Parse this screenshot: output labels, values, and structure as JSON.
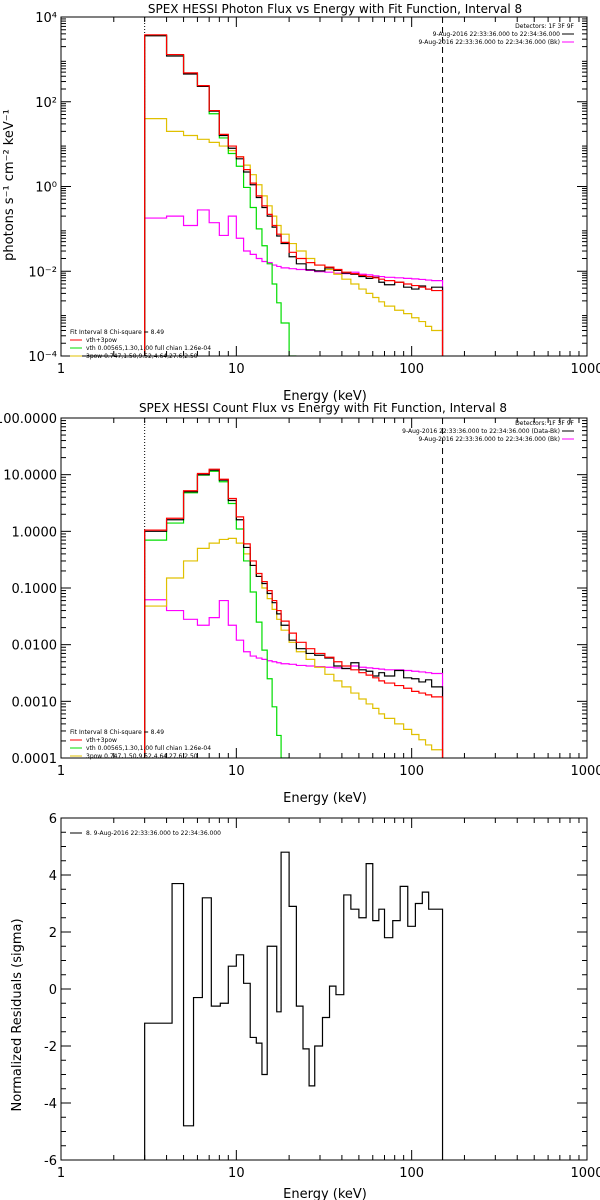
{
  "colors": {
    "data": "#000000",
    "total_fit": "#ff0000",
    "thermal": "#00dd00",
    "power_law": "#e0c000",
    "background": "#ff00ff"
  },
  "chart_data": [
    {
      "type": "line",
      "title": "SPEX HESSI Photon Flux vs Energy with Fit Function, Interval 8",
      "xlabel": "Energy (keV)",
      "ylabel": "photons s⁻¹ cm⁻² keV⁻¹",
      "xscale": "log",
      "yscale": "log",
      "xlim": [
        1,
        1000
      ],
      "ylim": [
        0.0001,
        10000
      ],
      "x_ticks": [
        "1",
        "10",
        "100",
        "1000"
      ],
      "y_ticks": [
        "10⁻⁴",
        "10⁻²",
        "10⁰",
        "10²",
        "10⁴"
      ],
      "legend_top_right": [
        "Detectors: 1F 3F 9F",
        "9-Aug-2016 22:33:36.000 to 22:34:36.000",
        "9-Aug-2016 22:33:36.000 to 22:34:36.000 (Bk)"
      ],
      "legend_bottom_left": [
        "Fit Interval 8   Chi-square = 8.49",
        "vth+3pow",
        "vth 0.00565,1.30,1.00  full chian 1.26e-04",
        "3pow 0.747,1.50,9.52,4.64,27.6,2.50"
      ],
      "vlines": [
        3,
        150
      ],
      "bin_edges": [
        3,
        3.5,
        4,
        4.5,
        5,
        5.5,
        6,
        6.5,
        7,
        7.5,
        8,
        8.5,
        9,
        10,
        11,
        12,
        13,
        14,
        15,
        16,
        17,
        18,
        20,
        22,
        25,
        28,
        32,
        36,
        40,
        45,
        50,
        55,
        60,
        65,
        70,
        80,
        90,
        100,
        110,
        120,
        130,
        150
      ],
      "series": [
        {
          "name": "data",
          "role": "data",
          "values": [
            3600.0,
            3600.0,
            1200.0,
            1200.0,
            450.0,
            450.0,
            230.0,
            230.0,
            60,
            60,
            16,
            16,
            8,
            4.5,
            2.2,
            1.1,
            0.55,
            0.32,
            0.2,
            0.11,
            0.068,
            0.045,
            0.022,
            0.015,
            0.0108,
            0.0102,
            0.012,
            0.0105,
            0.009,
            0.0085,
            0.0075,
            0.0068,
            0.0072,
            0.0055,
            0.0048,
            0.0055,
            0.0042,
            0.0038,
            0.0045,
            0.0038,
            0.0042,
            0.0038
          ]
        },
        {
          "name": "vth+3pow",
          "role": "total_fit",
          "values": [
            3800.0,
            3800.0,
            1300.0,
            1300.0,
            480.0,
            480.0,
            240.0,
            240.0,
            62,
            62,
            17,
            17,
            9,
            5,
            2.5,
            1.2,
            0.6,
            0.35,
            0.22,
            0.12,
            0.075,
            0.048,
            0.028,
            0.02,
            0.016,
            0.014,
            0.0125,
            0.011,
            0.0095,
            0.0088,
            0.008,
            0.0075,
            0.007,
            0.0065,
            0.006,
            0.0055,
            0.005,
            0.0046,
            0.0042,
            0.0038,
            0.0035,
            0.0032
          ]
        },
        {
          "name": "vth",
          "role": "thermal",
          "values": [
            3700.0,
            3700.0,
            1300.0,
            1300.0,
            470.0,
            470.0,
            230.0,
            230.0,
            52,
            52,
            14,
            14,
            6,
            3,
            0.95,
            0.32,
            0.1,
            0.04,
            0.015,
            0.005,
            0.0018,
            0.0006,
            0.0001
          ]
        },
        {
          "name": "3pow",
          "role": "power_law",
          "values": [
            40,
            40,
            20,
            20,
            16,
            16,
            13,
            13,
            11,
            11,
            9,
            9,
            7,
            5,
            3.2,
            1.9,
            1.1,
            0.6,
            0.35,
            0.2,
            0.12,
            0.075,
            0.045,
            0.03,
            0.02,
            0.014,
            0.011,
            0.0085,
            0.0065,
            0.005,
            0.0038,
            0.003,
            0.0024,
            0.0019,
            0.0015,
            0.0012,
            0.001,
            0.0008,
            0.00065,
            0.0005,
            0.0004,
            0.0003
          ]
        },
        {
          "name": "background",
          "role": "background",
          "values": [
            0.18,
            0.18,
            0.2,
            0.2,
            0.12,
            0.12,
            0.28,
            0.28,
            0.14,
            0.14,
            0.07,
            0.07,
            0.2,
            0.06,
            0.03,
            0.025,
            0.02,
            0.017,
            0.016,
            0.014,
            0.013,
            0.012,
            0.0115,
            0.011,
            0.0105,
            0.0098,
            0.0095,
            0.009,
            0.0088,
            0.0095,
            0.0085,
            0.0082,
            0.0078,
            0.0075,
            0.0072,
            0.007,
            0.0068,
            0.0066,
            0.0064,
            0.0062,
            0.006,
            0.0058
          ]
        }
      ]
    },
    {
      "type": "line",
      "title": "SPEX HESSI Count Flux vs Energy with Fit Function, Interval 8",
      "xlabel": "Energy (keV)",
      "ylabel": "",
      "xscale": "log",
      "yscale": "log",
      "xlim": [
        1,
        1000
      ],
      "ylim": [
        0.0001,
        100
      ],
      "x_ticks": [
        "1",
        "10",
        "100",
        "1000"
      ],
      "y_ticks": [
        "0.0001",
        "0.0010",
        "0.0100",
        "0.1000",
        "1.0000",
        "10.0000",
        "100.0000"
      ],
      "legend_top_right": [
        "Detectors: 1F 3F 9F",
        "9-Aug-2016 22:33:36.000 to 22:34:36.000 (Data-Bk)",
        "9-Aug-2016 22:33:36.000 to 22:34:36.000 (Bk)"
      ],
      "legend_bottom_left": [
        "Fit Interval 8   Chi-square = 8.49",
        "vth+3pow",
        "vth 0.00565,1.30,1.00  full chian 1.26e-04",
        "3pow 0.747,1.50,9.52,4.64,27.6,2.50"
      ],
      "vlines": [
        3,
        150
      ],
      "bin_edges": [
        3,
        3.5,
        4,
        4.5,
        5,
        5.5,
        6,
        6.5,
        7,
        7.5,
        8,
        8.5,
        9,
        10,
        11,
        12,
        13,
        14,
        15,
        16,
        17,
        18,
        20,
        22,
        25,
        28,
        32,
        36,
        40,
        45,
        50,
        55,
        60,
        65,
        70,
        80,
        90,
        100,
        110,
        120,
        130,
        150
      ],
      "series": [
        {
          "name": "data",
          "role": "data",
          "values": [
            1.0,
            1.0,
            1.6,
            1.6,
            5.0,
            5.0,
            10,
            10,
            12,
            12,
            8,
            8,
            3.5,
            1.6,
            0.52,
            0.25,
            0.16,
            0.12,
            0.08,
            0.055,
            0.035,
            0.022,
            0.012,
            0.0085,
            0.007,
            0.0065,
            0.0058,
            0.0042,
            0.0038,
            0.0048,
            0.0036,
            0.0034,
            0.0028,
            0.0032,
            0.0028,
            0.0035,
            0.0026,
            0.0025,
            0.0022,
            0.0024,
            0.0018,
            0.0016
          ]
        },
        {
          "name": "vth+3pow",
          "role": "total_fit",
          "values": [
            1.05,
            1.05,
            1.7,
            1.7,
            5.2,
            5.2,
            10.5,
            10.5,
            12.5,
            12.5,
            8.3,
            8.3,
            3.8,
            1.8,
            0.6,
            0.3,
            0.18,
            0.13,
            0.09,
            0.06,
            0.04,
            0.026,
            0.016,
            0.011,
            0.0085,
            0.007,
            0.006,
            0.005,
            0.0042,
            0.0036,
            0.0032,
            0.0029,
            0.0026,
            0.0023,
            0.0021,
            0.0019,
            0.0017,
            0.0015,
            0.0014,
            0.0013,
            0.0012,
            0.0011
          ]
        },
        {
          "name": "vth",
          "role": "thermal",
          "values": [
            0.7,
            0.7,
            1.4,
            1.4,
            4.8,
            4.8,
            9.8,
            9.8,
            11.5,
            11.5,
            7.5,
            7.5,
            3.1,
            1.1,
            0.3,
            0.085,
            0.025,
            0.008,
            0.0025,
            0.0008,
            0.00025,
            0.0001
          ]
        },
        {
          "name": "3pow",
          "role": "power_law",
          "values": [
            0.048,
            0.048,
            0.15,
            0.15,
            0.3,
            0.3,
            0.5,
            0.5,
            0.62,
            0.62,
            0.72,
            0.72,
            0.75,
            0.62,
            0.4,
            0.25,
            0.16,
            0.1,
            0.065,
            0.042,
            0.028,
            0.018,
            0.011,
            0.0075,
            0.0055,
            0.004,
            0.003,
            0.0023,
            0.0018,
            0.0014,
            0.0011,
            0.0009,
            0.00075,
            0.0006,
            0.0005,
            0.0004,
            0.00032,
            0.00026,
            0.00021,
            0.00017,
            0.00014,
            0.00011
          ]
        },
        {
          "name": "background",
          "role": "background",
          "values": [
            0.062,
            0.062,
            0.04,
            0.04,
            0.028,
            0.028,
            0.022,
            0.022,
            0.03,
            0.03,
            0.06,
            0.06,
            0.022,
            0.012,
            0.0075,
            0.0063,
            0.0058,
            0.0055,
            0.0052,
            0.005,
            0.0048,
            0.0046,
            0.0045,
            0.0043,
            0.0042,
            0.0041,
            0.004,
            0.0039,
            0.0038,
            0.0042,
            0.004,
            0.0039,
            0.0038,
            0.0037,
            0.0036,
            0.0036,
            0.0035,
            0.0034,
            0.0033,
            0.0032,
            0.0031,
            0.003
          ]
        }
      ]
    },
    {
      "type": "line",
      "title": "",
      "xlabel": "Energy (keV)",
      "ylabel": "Normalized Residuals (sigma)",
      "xscale": "log",
      "yscale": "linear",
      "xlim": [
        1,
        1000
      ],
      "ylim": [
        -6,
        6
      ],
      "x_ticks": [
        "1",
        "10",
        "100",
        "1000"
      ],
      "y_ticks": [
        "-6",
        "-4",
        "-2",
        "0",
        "2",
        "4",
        "6"
      ],
      "legend": "8.  9-Aug-2016 22:33:36.000 to 22:34:36.000",
      "bin_edges": [
        3,
        4.3,
        5,
        5.7,
        6.4,
        7.2,
        8.1,
        9,
        10,
        11,
        12,
        13,
        14,
        15,
        17,
        18,
        20,
        22,
        24,
        26,
        28,
        31,
        34,
        37,
        41,
        45,
        50,
        55,
        60,
        65,
        70,
        78,
        86,
        95,
        105,
        115,
        125,
        135,
        150
      ],
      "series": [
        {
          "name": "residuals",
          "values": [
            -1.2,
            3.7,
            -4.8,
            -0.3,
            3.2,
            -0.6,
            -0.5,
            0.8,
            1.2,
            0.2,
            -1.7,
            -1.9,
            -3.0,
            1.5,
            -0.8,
            4.8,
            2.9,
            -0.6,
            -2.1,
            -3.4,
            -2.0,
            -1.0,
            0.1,
            -0.2,
            3.3,
            2.8,
            2.5,
            4.4,
            2.4,
            2.8,
            1.8,
            2.4,
            3.6,
            2.2,
            3.0,
            3.4,
            2.8,
            2.8
          ]
        }
      ]
    }
  ]
}
